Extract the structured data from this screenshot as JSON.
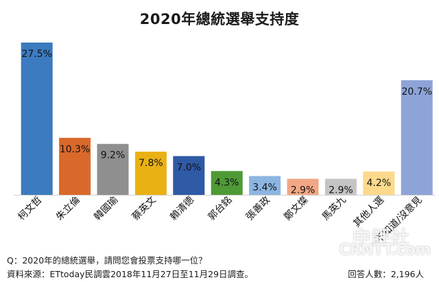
{
  "chart_data": {
    "type": "bar",
    "title": "2020年總統選舉支持度",
    "categories": [
      "柯文哲",
      "朱立倫",
      "韓國瑜",
      "蔡英文",
      "賴清德",
      "郭台銘",
      "張善政",
      "鄭文燦",
      "馬英九",
      "其他人選",
      "不知道/沒意見"
    ],
    "values": [
      27.5,
      10.3,
      9.2,
      7.8,
      7.0,
      4.3,
      3.4,
      2.9,
      2.9,
      4.2,
      20.7
    ],
    "value_labels": [
      "27.5%",
      "10.3%",
      "9.2%",
      "7.8%",
      "7.0%",
      "4.3%",
      "3.4%",
      "2.9%",
      "2.9%",
      "4.2%",
      "20.7%"
    ],
    "colors": [
      "#3c7bbf",
      "#d9692b",
      "#8f8f8f",
      "#eab114",
      "#2f5aa6",
      "#4e9a36",
      "#8db5e2",
      "#f2a785",
      "#c4c4c4",
      "#fdd98b",
      "#8ea4d8"
    ],
    "xlabel": "",
    "ylabel": "",
    "ylim": [
      0,
      27.5
    ],
    "grid": false,
    "legend": "none"
  },
  "footer": {
    "question": "Q：2020年的總統選舉，請問您會投票支持哪一位？",
    "source": "資料來源：ETtoday民調雲2018年11月27日至11月29日調查。",
    "respondents": "回答人數：2,196人"
  },
  "watermark": {
    "cn": "中評社",
    "en": "CRNTT.com"
  }
}
